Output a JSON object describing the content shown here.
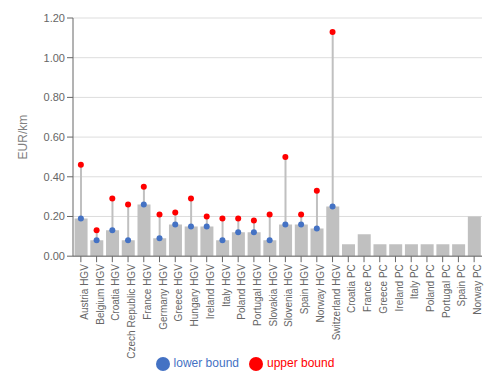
{
  "chart_data": {
    "type": "bar",
    "categories": [
      "Austria HGV",
      "Belgium HGV",
      "Croatia HGV",
      "Czech Republic HGV",
      "France HGV",
      "Germany HGV",
      "Greece HGV",
      "Hungary HGV",
      "Ireland HGV",
      "Italy HGV",
      "Poland HGV",
      "Portugal HGV",
      "Slovakia HGV",
      "Slovenia HGV",
      "Spain HGV",
      "Norway HGV",
      "Switzerland HGV",
      "Croatia PC",
      "France PC",
      "Greece PC",
      "Ireland PC",
      "Italy PC",
      "Poland PC",
      "Portugal PC",
      "Spain PC",
      "Norway PC"
    ],
    "values": [
      0.19,
      0.08,
      0.13,
      0.08,
      0.26,
      0.09,
      0.16,
      0.15,
      0.15,
      0.08,
      0.12,
      0.12,
      0.08,
      0.16,
      0.16,
      0.14,
      0.25,
      0.06,
      0.11,
      0.06,
      0.06,
      0.06,
      0.06,
      0.06,
      0.06,
      0.2
    ],
    "color": "#c0c0c0",
    "series": [
      {
        "name": "lower bound",
        "color": "#4472c4",
        "marker": "circle",
        "values": [
          0.19,
          0.08,
          0.13,
          0.08,
          0.26,
          0.09,
          0.16,
          0.15,
          0.15,
          0.08,
          0.12,
          0.12,
          0.08,
          0.16,
          0.16,
          0.14,
          0.25,
          null,
          null,
          null,
          null,
          null,
          null,
          null,
          null,
          null
        ]
      },
      {
        "name": "upper bound",
        "color": "#ff0000",
        "marker": "circle",
        "values": [
          0.46,
          0.13,
          0.29,
          0.26,
          0.35,
          0.21,
          0.22,
          0.29,
          0.2,
          0.19,
          0.19,
          0.18,
          0.21,
          0.5,
          0.21,
          0.33,
          1.13,
          null,
          null,
          null,
          null,
          null,
          null,
          null,
          null,
          null
        ]
      }
    ],
    "ylabel": "EUR/km",
    "ylim": [
      0,
      1.2
    ],
    "yticks": [
      {
        "value": 0,
        "label": "0.00"
      },
      {
        "value": 0.2,
        "label": "0.20"
      },
      {
        "value": 0.4,
        "label": "0.40"
      },
      {
        "value": 0.6,
        "label": "0.60"
      },
      {
        "value": 0.8,
        "label": "0.80"
      },
      {
        "value": 1.0,
        "label": "1.00"
      },
      {
        "value": 1.2,
        "label": "1.20"
      }
    ],
    "grid": true
  }
}
